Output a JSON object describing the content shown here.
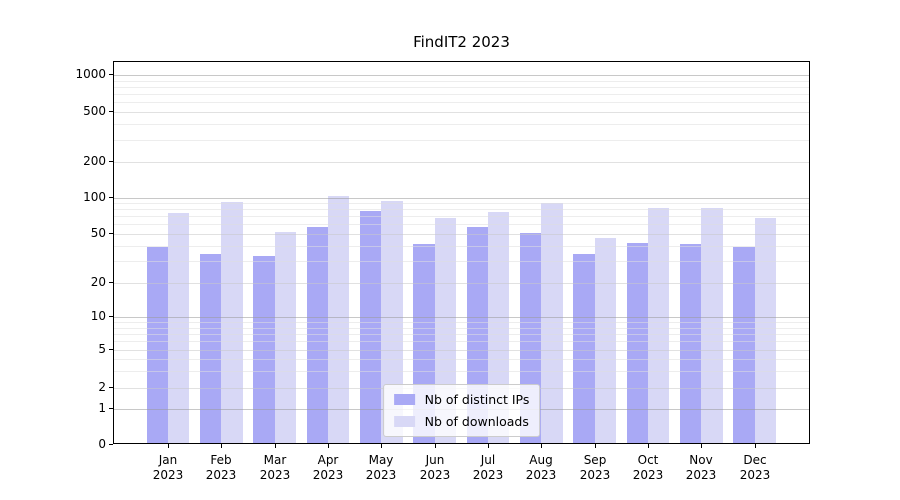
{
  "title": "FindIT2 2023",
  "colors": {
    "ips": "#a9a9f5",
    "downloads": "#d8d8f6",
    "grid_major": "#9a9a9a",
    "grid_mid": "#c8c8c8",
    "grid_minor": "#dedede",
    "spine": "#000000",
    "legend_border": "#cccccc"
  },
  "chart_data": {
    "type": "bar",
    "title": "FindIT2 2023",
    "categories": [
      "Jan 2023",
      "Feb 2023",
      "Mar 2023",
      "Apr 2023",
      "May 2023",
      "Jun 2023",
      "Jul 2023",
      "Aug 2023",
      "Sep 2023",
      "Oct 2023",
      "Nov 2023",
      "Dec 2023"
    ],
    "series": [
      {
        "name": "Nb of distinct IPs",
        "values": [
          38,
          33,
          32,
          55,
          75,
          40,
          55,
          49,
          33,
          41,
          40,
          38
        ]
      },
      {
        "name": "Nb of downloads",
        "values": [
          72,
          89,
          50,
          100,
          90,
          65,
          73,
          87,
          45,
          79,
          79,
          65
        ]
      }
    ],
    "xlabel": "",
    "ylabel": "",
    "yscale": "symlog",
    "yticks": [
      0,
      1,
      2,
      5,
      10,
      20,
      50,
      100,
      200,
      500,
      1000
    ],
    "ylim": [
      0,
      1000
    ],
    "grid": true,
    "legend_position": "lower center"
  }
}
